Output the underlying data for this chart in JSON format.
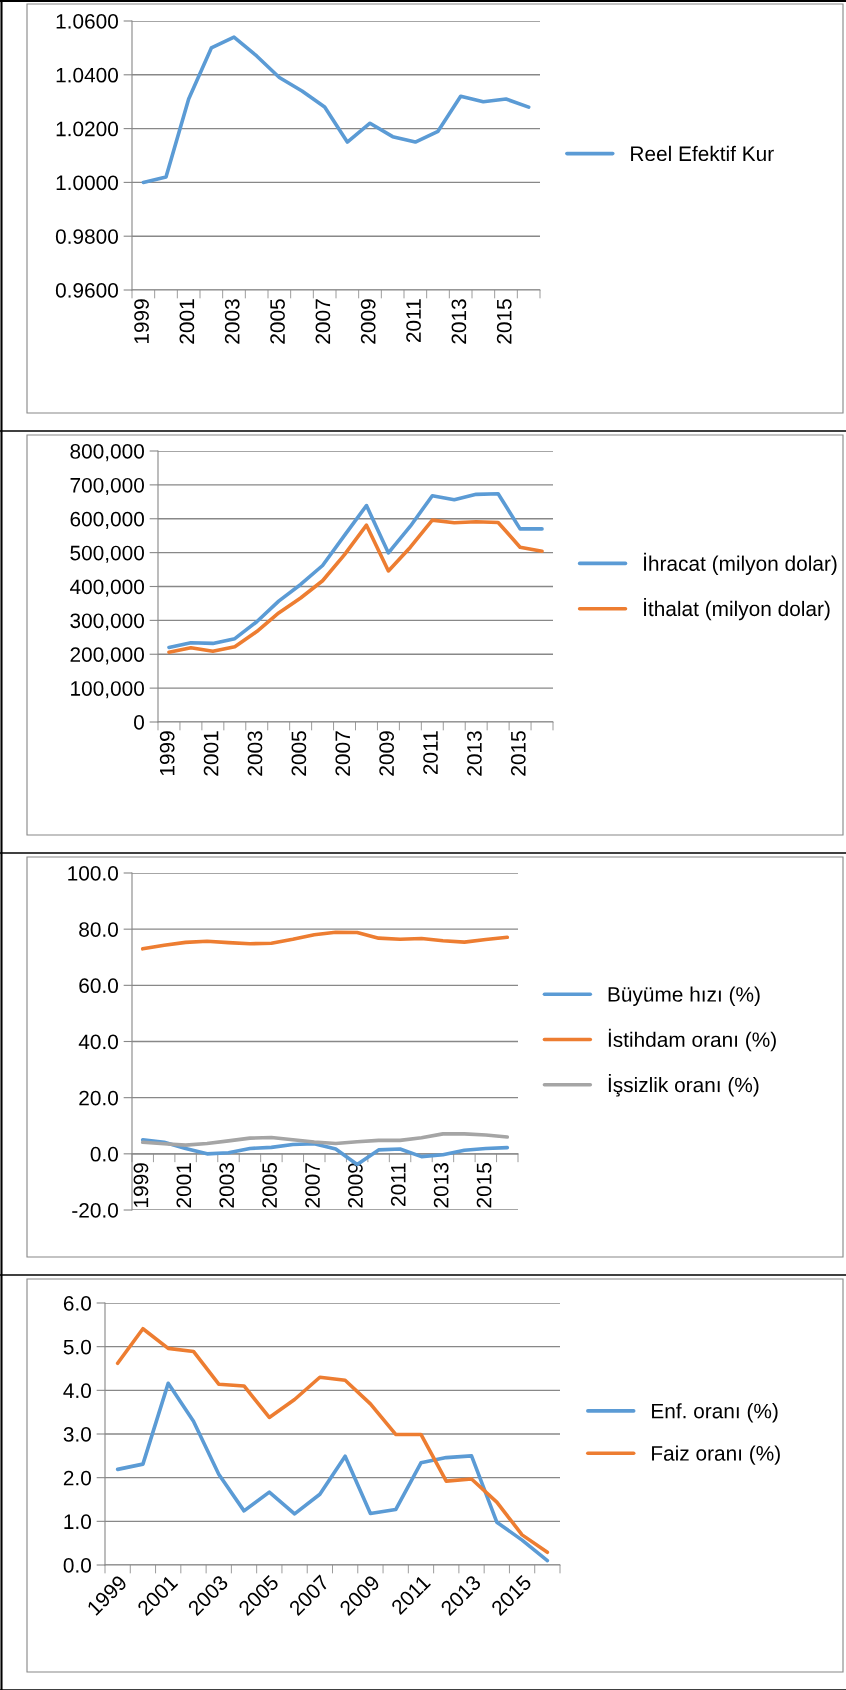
{
  "chart_data": [
    {
      "type": "line",
      "categories": [
        "1999",
        null,
        "2001",
        null,
        "2003",
        null,
        "2005",
        null,
        "2007",
        null,
        "2009",
        null,
        "2011",
        null,
        "2013",
        null,
        "2015",
        null
      ],
      "series": [
        {
          "name": "Reel Efektif Kur",
          "color": "#5b9bd5",
          "values": [
            1.0,
            1.002,
            1.031,
            1.05,
            1.054,
            1.047,
            1.039,
            1.034,
            1.028,
            1.015,
            1.022,
            1.017,
            1.015,
            1.019,
            1.032,
            1.03,
            1.031,
            1.028
          ]
        }
      ],
      "ylim": [
        0.96,
        1.06
      ],
      "yticks": [
        {
          "value": 0.96,
          "label": "0.9600"
        },
        {
          "value": 0.98,
          "label": "0.9800"
        },
        {
          "value": 1.0,
          "label": "1.0000"
        },
        {
          "value": 1.02,
          "label": "1.0200"
        },
        {
          "value": 1.04,
          "label": "1.0400"
        },
        {
          "value": 1.06,
          "label": "1.0600"
        }
      ],
      "grid": "y",
      "legend": "right",
      "marker": "none",
      "line_style": "solid"
    },
    {
      "type": "line",
      "categories": [
        "1999",
        null,
        "2001",
        null,
        "2003",
        null,
        "2005",
        null,
        "2007",
        null,
        "2009",
        null,
        "2011",
        null,
        "2013",
        null,
        "2015",
        null
      ],
      "series": [
        {
          "name": "İhracat (milyon dolar)",
          "color": "#5b9bd5",
          "values": [
            220000,
            234000,
            232000,
            246000,
            296000,
            357000,
            406000,
            462000,
            551000,
            639000,
            499000,
            578000,
            668000,
            656000,
            672000,
            674000,
            570000,
            570000
          ]
        },
        {
          "name": "İthalat (milyon dolar)",
          "color": "#ed7d31",
          "values": [
            206000,
            219000,
            209000,
            222000,
            267000,
            322000,
            366000,
            417000,
            494000,
            581000,
            446000,
            516000,
            596000,
            588000,
            591000,
            589000,
            516000,
            504000
          ]
        }
      ],
      "ylim": [
        0,
        800000
      ],
      "yticks": [
        0,
        {
          "value": 100000,
          "label": "100,000"
        },
        {
          "value": 200000,
          "label": "200,000"
        },
        {
          "value": 300000,
          "label": "300,000"
        },
        {
          "value": 400000,
          "label": "400,000"
        },
        {
          "value": 500000,
          "label": "500,000"
        },
        {
          "value": 600000,
          "label": "600,000"
        },
        {
          "value": 700000,
          "label": "700,000"
        },
        {
          "value": 800000,
          "label": "800,000"
        }
      ],
      "grid": "y",
      "legend": "right",
      "marker": "none",
      "line_style": "solid"
    },
    {
      "type": "line",
      "categories": [
        "1999",
        null,
        "2001",
        null,
        "2003",
        null,
        "2005",
        null,
        "2007",
        null,
        "2009",
        null,
        "2011",
        null,
        "2013",
        null,
        "2015",
        null
      ],
      "series": [
        {
          "name": "Büyüme hızı (%)",
          "color": "#5b9bd5",
          "values": [
            5.0,
            4.1,
            1.9,
            0.0,
            0.4,
            1.9,
            2.3,
            3.3,
            3.6,
            1.7,
            -3.8,
            1.4,
            1.7,
            -1.0,
            -0.3,
            1.3,
            1.9,
            2.2
          ]
        },
        {
          "name": "İstihdam oranı (%)",
          "color": "#ed7d31",
          "values": [
            73.0,
            74.3,
            75.3,
            75.7,
            75.2,
            74.8,
            75.0,
            76.4,
            78.0,
            78.9,
            78.8,
            76.8,
            76.4,
            76.7,
            75.9,
            75.4,
            76.3,
            77.1
          ]
        },
        {
          "name": "İşsizlik oranı (%)",
          "color": "#a5a5a5",
          "values": [
            4.1,
            3.6,
            3.1,
            3.7,
            4.6,
            5.6,
            5.8,
            5.0,
            4.2,
            3.7,
            4.3,
            4.8,
            4.8,
            5.7,
            7.1,
            7.1,
            6.7,
            6.0
          ]
        }
      ],
      "ylim": [
        -20,
        100
      ],
      "yticks": [
        {
          "value": -20,
          "label": "-20.0"
        },
        {
          "value": 0,
          "label": "0.0"
        },
        {
          "value": 20,
          "label": "20.0"
        },
        {
          "value": 40,
          "label": "40.0"
        },
        {
          "value": 60,
          "label": "60.0"
        },
        {
          "value": 80,
          "label": "80.0"
        },
        {
          "value": 100,
          "label": "100.0"
        }
      ],
      "grid": "y",
      "legend": "right",
      "marker": "none",
      "line_style": "solid"
    },
    {
      "type": "line",
      "categories": [
        "1999",
        null,
        "2001",
        null,
        "2003",
        null,
        "2005",
        null,
        "2007",
        null,
        "2009",
        null,
        "2011",
        null,
        "2013",
        null,
        "2015",
        null
      ],
      "series": [
        {
          "name": "Enf. oranı (%)",
          "color": "#5b9bd5",
          "values": [
            2.19,
            2.31,
            4.16,
            3.29,
            2.08,
            1.24,
            1.67,
            1.17,
            1.62,
            2.49,
            1.18,
            1.27,
            2.34,
            2.46,
            2.5,
            0.98,
            0.57,
            0.1
          ]
        },
        {
          "name": "Faiz oranı (%)",
          "color": "#ed7d31",
          "values": [
            4.62,
            5.41,
            4.96,
            4.89,
            4.14,
            4.1,
            3.38,
            3.79,
            4.3,
            4.23,
            3.69,
            2.99,
            2.99,
            1.92,
            1.97,
            1.44,
            0.69,
            0.29
          ]
        }
      ],
      "ylim": [
        0,
        6
      ],
      "yticks": [
        {
          "value": 0,
          "label": "0.0"
        },
        {
          "value": 1,
          "label": "1.0"
        },
        {
          "value": 2,
          "label": "2.0"
        },
        {
          "value": 3,
          "label": "3.0"
        },
        {
          "value": 4,
          "label": "4.0"
        },
        {
          "value": 5,
          "label": "5.0"
        },
        {
          "value": 6,
          "label": "6.0"
        }
      ],
      "grid": "y",
      "legend": "right",
      "marker": "none",
      "line_style": "solid"
    }
  ]
}
